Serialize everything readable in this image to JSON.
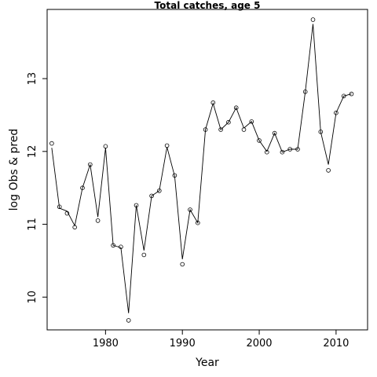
{
  "chart_data": {
    "type": "line",
    "title": "Total catches, age 5",
    "xlabel": "Year",
    "ylabel": "log Obs & pred",
    "xlim": [
      1972.4,
      2014.1
    ],
    "ylim": [
      9.55,
      13.95
    ],
    "x_ticks": [
      1980,
      1990,
      2000,
      2010
    ],
    "y_ticks": [
      10,
      11,
      12,
      13
    ],
    "grid": false,
    "series": [
      {
        "role": "observed",
        "marker": "open-circle",
        "x": [
          1973,
          1974,
          1975,
          1976,
          1977,
          1978,
          1979,
          1980,
          1981,
          1982,
          1983,
          1984,
          1985,
          1986,
          1987,
          1988,
          1989,
          1990,
          1991,
          1992,
          1993,
          1994,
          1995,
          1996,
          1997,
          1998,
          1999,
          2000,
          2001,
          2002,
          2003,
          2004,
          2005,
          2006,
          2007,
          2008,
          2009,
          2010,
          2011,
          2012
        ],
        "values": [
          12.11,
          11.24,
          11.15,
          10.96,
          11.5,
          11.82,
          11.05,
          12.07,
          10.71,
          10.69,
          9.68,
          11.26,
          10.58,
          11.39,
          11.46,
          12.08,
          11.67,
          10.45,
          11.2,
          11.02,
          12.3,
          12.67,
          12.3,
          12.4,
          12.6,
          12.3,
          12.41,
          12.15,
          11.99,
          12.25,
          11.99,
          12.03,
          12.03,
          12.82,
          13.81,
          12.27,
          11.74,
          12.53,
          12.76,
          12.79
        ]
      },
      {
        "role": "predicted",
        "marker": "line",
        "x": [
          1973,
          1974,
          1975,
          1976,
          1977,
          1978,
          1979,
          1980,
          1981,
          1982,
          1983,
          1984,
          1985,
          1986,
          1987,
          1988,
          1989,
          1990,
          1991,
          1992,
          1993,
          1994,
          1995,
          1996,
          1997,
          1998,
          1999,
          2000,
          2001,
          2002,
          2003,
          2004,
          2005,
          2006,
          2007,
          2008,
          2009,
          2010,
          2011,
          2012
        ],
        "values": [
          12.05,
          11.22,
          11.18,
          10.98,
          11.5,
          11.82,
          11.1,
          12.05,
          10.71,
          10.68,
          9.78,
          11.26,
          10.64,
          11.39,
          11.46,
          12.06,
          11.66,
          10.52,
          11.2,
          11.02,
          12.3,
          12.66,
          12.3,
          12.4,
          12.6,
          12.32,
          12.41,
          12.15,
          12.0,
          12.25,
          11.99,
          12.03,
          12.03,
          12.82,
          13.75,
          12.27,
          11.82,
          12.53,
          12.76,
          12.79
        ]
      }
    ]
  }
}
